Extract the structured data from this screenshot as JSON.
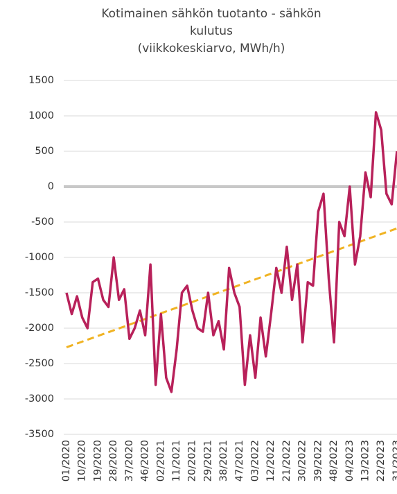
{
  "chart_data": {
    "type": "line",
    "title": "Kotimainen sähkön tuotanto - sähkön kulutus",
    "subtitle": "(viikkokeskiarvo, MWh/h)",
    "categories": [
      "01/2020",
      null,
      null,
      "10/2020",
      null,
      null,
      "19/2020",
      null,
      null,
      "28/2020",
      null,
      null,
      "37/2020",
      null,
      null,
      "46/2020",
      null,
      null,
      "02/2021",
      null,
      null,
      "11/2021",
      null,
      null,
      "20/2021",
      null,
      null,
      "29/2021",
      null,
      null,
      "38/2021",
      null,
      null,
      "47/2021",
      null,
      null,
      "03/2022",
      null,
      null,
      "12/2022",
      null,
      null,
      "21/2022",
      null,
      null,
      "30/2022",
      null,
      null,
      "39/2022",
      null,
      null,
      "48/2022",
      null,
      null,
      "04/2023",
      null,
      null,
      "13/2023",
      null,
      null,
      "22/2023",
      null,
      null,
      "31/2023"
    ],
    "series": [
      {
        "color": "#b8215a",
        "values": [
          -1500,
          -1800,
          -1550,
          -1850,
          -2000,
          -1350,
          -1300,
          -1600,
          -1700,
          -1000,
          -1600,
          -1450,
          -2150,
          -2000,
          -1750,
          -2100,
          -1100,
          -2800,
          -1800,
          -2700,
          -2900,
          -2300,
          -1500,
          -1400,
          -1750,
          -2000,
          -2050,
          -1500,
          -2100,
          -1900,
          -2300,
          -1150,
          -1500,
          -1700,
          -2800,
          -2100,
          -2700,
          -1850,
          -2400,
          -1800,
          -1150,
          -1500,
          -850,
          -1600,
          -1100,
          -2200,
          -1350,
          -1400,
          -350,
          -100,
          -1300,
          -2200,
          -500,
          -700,
          0,
          -1100,
          -700,
          200,
          -150,
          1050,
          800,
          -100,
          -250,
          500
        ]
      },
      {
        "color": "#f0b323",
        "dashed": true,
        "values": [
          -2270,
          -2243,
          -2217,
          -2190,
          -2163,
          -2137,
          -2110,
          -2083,
          -2057,
          -2030,
          -2003,
          -1977,
          -1950,
          -1923,
          -1897,
          -1870,
          -1843,
          -1817,
          -1790,
          -1763,
          -1737,
          -1710,
          -1683,
          -1657,
          -1630,
          -1603,
          -1577,
          -1550,
          -1523,
          -1497,
          -1470,
          -1443,
          -1417,
          -1390,
          -1363,
          -1337,
          -1310,
          -1283,
          -1257,
          -1230,
          -1203,
          -1177,
          -1150,
          -1123,
          -1097,
          -1070,
          -1043,
          -1017,
          -990,
          -963,
          -937,
          -910,
          -883,
          -857,
          -830,
          -803,
          -777,
          -750,
          -723,
          -697,
          -670,
          -643,
          -617,
          -590
        ]
      }
    ],
    "ylim": [
      -3500,
      1500
    ],
    "yticks": [
      -3500,
      -3000,
      -2500,
      -2000,
      -1500,
      -1000,
      -500,
      0,
      500,
      1000,
      1500
    ],
    "grid": true
  }
}
